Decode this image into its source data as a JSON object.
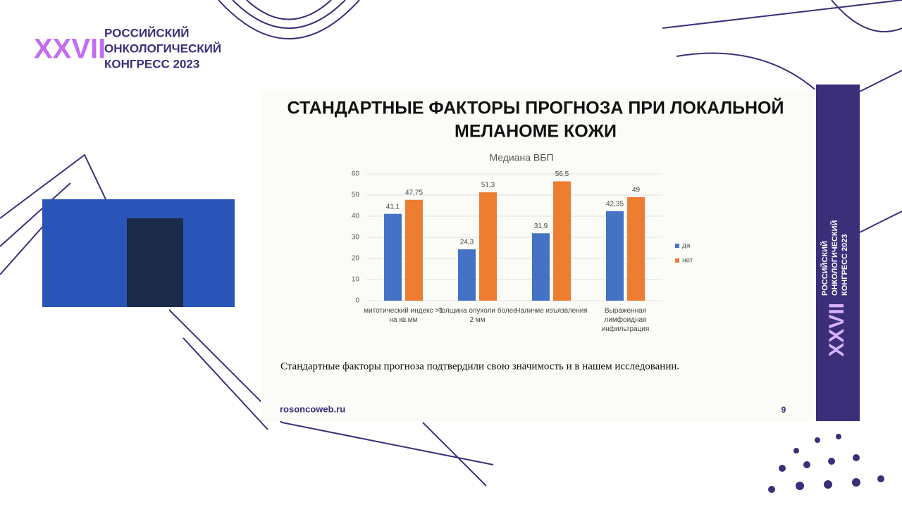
{
  "logo": {
    "numeral": "XXVII",
    "lines": [
      "РОССИЙСКИЙ",
      "ОНКОЛОГИЧЕСКИЙ",
      "КОНГРЕСС 2023"
    ]
  },
  "slide": {
    "title_lines": [
      "СТАНДАРТНЫЕ ФАКТОРЫ ПРОГНОЗА ПРИ ЛОКАЛЬНОЙ",
      "МЕЛАНОМЕ КОЖИ"
    ],
    "caption": "Стандартные факторы прогноза подтвердили свою значимость и в нашем исследовании.",
    "website": "rosoncoweb.ru",
    "page_number": "9"
  },
  "side_banner": {
    "numeral": "XXVII",
    "lines": [
      "РОССИЙСКИЙ",
      "ОНКОЛОГИЧЕСКИЙ",
      "КОНГРЕСС 2023"
    ]
  },
  "chart_data": {
    "type": "bar",
    "title": "Медиана ВБП",
    "categories": [
      "митотический индекс >1 на кв.мм",
      "Толщина опухоли более 2 мм",
      "Наличие изъязвления",
      "Выраженная лимфоидная инфильтрация"
    ],
    "series": [
      {
        "name": "да",
        "color": "#4472c4",
        "values": [
          41.1,
          24.3,
          31.9,
          42.35
        ],
        "value_labels": [
          "41,1",
          "24,3",
          "31,9",
          "42,35"
        ]
      },
      {
        "name": "нет",
        "color": "#ed7d31",
        "values": [
          47.75,
          51.3,
          56.5,
          49
        ],
        "value_labels": [
          "47,75",
          "51,3",
          "56,5",
          "49"
        ]
      }
    ],
    "ylim": [
      0,
      60
    ],
    "yticks": [
      0,
      10,
      20,
      30,
      40,
      50,
      60
    ],
    "grid": true,
    "legend": "right"
  }
}
